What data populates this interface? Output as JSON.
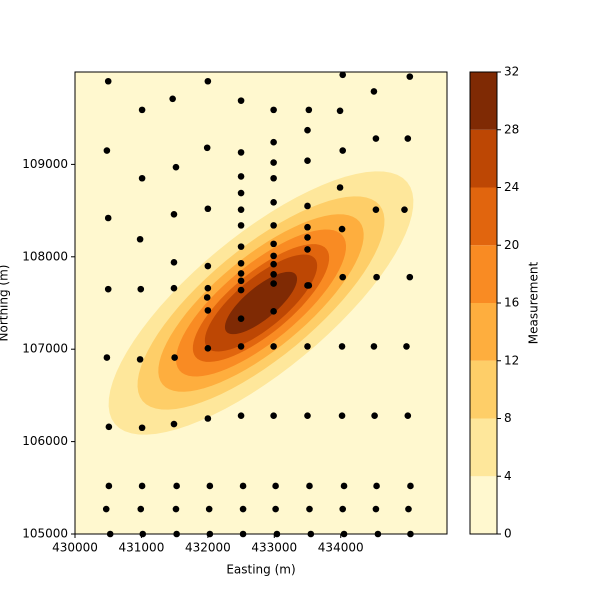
{
  "chart_data": {
    "type": "contour",
    "xlabel": "Easting (m)",
    "ylabel": "Northing (m)",
    "colorbar_label": "Measurement",
    "xlim": [
      430000,
      435600
    ],
    "ylim": [
      105000,
      110000
    ],
    "xticks": [
      430000,
      431000,
      432000,
      433000,
      434000
    ],
    "yticks": [
      105000,
      106000,
      107000,
      108000,
      109000
    ],
    "levels": [
      0,
      4,
      8,
      12,
      16,
      20,
      24,
      28,
      32
    ],
    "colors": [
      "#fff8cf",
      "#fee79b",
      "#fece68",
      "#feae3e",
      "#f98b23",
      "#e1650e",
      "#bd4704",
      "#7f2a04"
    ],
    "contours": [
      {
        "level": 4,
        "center": [
          432800,
          107500
        ],
        "major": [
          2200,
          1308
        ],
        "minor": [
          -651,
          566
        ]
      },
      {
        "level": 8,
        "center": [
          432800,
          107500
        ],
        "major": [
          1783,
          1060
        ],
        "minor": [
          -527,
          458
        ]
      },
      {
        "level": 12,
        "center": [
          432800,
          107500
        ],
        "major": [
          1482,
          881
        ],
        "minor": [
          -441,
          383
        ]
      },
      {
        "level": 16,
        "center": [
          432800,
          107500
        ],
        "major": [
          1227,
          730
        ],
        "minor": [
          -364,
          316
        ]
      },
      {
        "level": 20,
        "center": [
          432800,
          107500
        ],
        "major": [
          984,
          585
        ],
        "minor": [
          -292,
          254
        ]
      },
      {
        "level": 24,
        "center": [
          432800,
          107500
        ],
        "major": [
          811,
          482
        ],
        "minor": [
          -239,
          208
        ]
      },
      {
        "level": 28,
        "center": [
          432800,
          107500
        ],
        "major": [
          521,
          310
        ],
        "minor": [
          -153,
          133
        ]
      }
    ],
    "scatter": {
      "color": "#000000",
      "x": [
        430530,
        431020,
        431530,
        432030,
        432530,
        433040,
        433550,
        434050,
        434560,
        435050,
        430470,
        430990,
        431520,
        432020,
        432530,
        433020,
        433530,
        434030,
        434530,
        435020,
        430510,
        431010,
        431530,
        432030,
        432530,
        433020,
        433530,
        434050,
        434540,
        435050,
        432000,
        432500,
        432990,
        433500,
        434020,
        434510,
        435010,
        430510,
        431010,
        431490,
        430480,
        430980,
        431500,
        432000,
        432500,
        432990,
        433500,
        434020,
        434500,
        434990,
        430500,
        430990,
        431490,
        431490,
        432000,
        433520,
        434030,
        434540,
        435040,
        432000,
        431990,
        432000,
        430980,
        430500,
        431490,
        432000,
        432500,
        432500,
        432500,
        432500,
        432500,
        432500,
        432500,
        432500,
        432500,
        432500,
        432990,
        432990,
        432990,
        432990,
        432990,
        432990,
        432990,
        432990,
        432990,
        433500,
        433500,
        433500,
        433500,
        433500,
        434020,
        434530,
        434960,
        433990,
        434030,
        433500,
        432990,
        432500,
        431990,
        431520,
        431010,
        430480,
        433500,
        434530,
        435010,
        432990,
        430500,
        431010,
        431470,
        432000,
        432500,
        432990,
        433520,
        433990,
        434500,
        434030,
        435040
      ],
      "y": [
        105000,
        105000,
        105000,
        105000,
        105000,
        105000,
        105000,
        105000,
        105000,
        105000,
        105270,
        105270,
        105270,
        105270,
        105270,
        105270,
        105270,
        105270,
        105270,
        105270,
        105520,
        105520,
        105520,
        105520,
        105520,
        105520,
        105520,
        105520,
        105520,
        105520,
        106250,
        106280,
        106280,
        106280,
        106280,
        106280,
        106280,
        106160,
        106150,
        106190,
        106910,
        106890,
        106910,
        107010,
        107030,
        107030,
        107030,
        107030,
        107030,
        107030,
        107650,
        107650,
        107660,
        107940,
        107900,
        107690,
        107780,
        107780,
        107780,
        107660,
        107560,
        107420,
        108190,
        108420,
        108460,
        108520,
        108870,
        108690,
        108510,
        108340,
        108110,
        107930,
        107820,
        107740,
        107640,
        107330,
        108850,
        108590,
        108340,
        108140,
        108010,
        107920,
        107810,
        107710,
        107410,
        108550,
        108320,
        108210,
        108080,
        107690,
        108300,
        108510,
        108510,
        108750,
        109150,
        109040,
        109020,
        109130,
        109180,
        108970,
        108850,
        109150,
        109370,
        109280,
        109280,
        109240,
        109900,
        109590,
        109710,
        109900,
        109690,
        109590,
        109590,
        109580,
        109790,
        109970,
        109950
      ]
    }
  }
}
